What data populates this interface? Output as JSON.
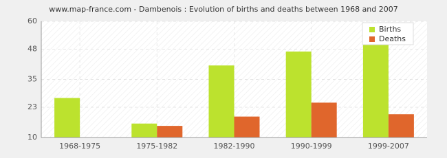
{
  "chart_data": {
    "type": "bar",
    "title": "www.map-france.com - Dambenois : Evolution of births and deaths between 1968 and 2007",
    "categories": [
      "1968-1975",
      "1975-1982",
      "1982-1990",
      "1990-1999",
      "1999-2007"
    ],
    "series": [
      {
        "name": "Births",
        "color": "#bce22e",
        "values": [
          27,
          16,
          41,
          47,
          52
        ]
      },
      {
        "name": "Deaths",
        "color": "#e0662c",
        "values": [
          10,
          15,
          19,
          25,
          20
        ]
      }
    ],
    "ylim": [
      10,
      60
    ],
    "yticks": [
      10,
      23,
      35,
      48,
      60
    ],
    "grid": true,
    "legend": "top-right"
  }
}
